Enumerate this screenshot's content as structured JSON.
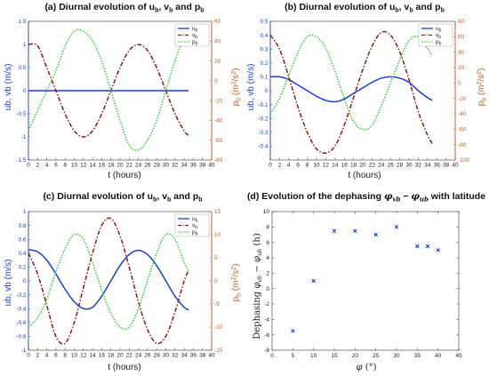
{
  "chart_data": [
    {
      "type": "line",
      "title": "(a) Diurnal evolution of u",
      "title_parts": [
        "(a) Diurnal evolution of u",
        "b",
        ", v",
        "b",
        " and p",
        "b"
      ],
      "xlabel": "t (hours)",
      "ylabel_left": "ub, vb (m/s)",
      "ylabel_right_parts": [
        "p",
        "b",
        " (m",
        "2",
        "/s",
        "2",
        ")"
      ],
      "xlim": [
        0,
        40
      ],
      "xticks": [
        0,
        2,
        4,
        6,
        8,
        10,
        12,
        14,
        16,
        18,
        20,
        22,
        24,
        26,
        28,
        30,
        32,
        34,
        36,
        38,
        40
      ],
      "ylim_left": [
        -1.5,
        1.5
      ],
      "yticks_left": [
        -1.5,
        -1,
        -0.5,
        0,
        0.5,
        1,
        1.5
      ],
      "ylim_right": [
        -80,
        60
      ],
      "yticks_right": [
        -80,
        -60,
        -40,
        -20,
        0,
        20,
        40,
        60
      ],
      "legend": {
        "position": "top-right",
        "entries": [
          {
            "base": "u",
            "sub": "b"
          },
          {
            "base": "v",
            "sub": "b"
          },
          {
            "base": "p",
            "sub": "b"
          }
        ]
      },
      "series": [
        {
          "name": "ub",
          "axis": "left",
          "color": "#1a3fd6",
          "style": "solid",
          "x": [
            0,
            2,
            4,
            6,
            8,
            10,
            12,
            14,
            16,
            18,
            20,
            22,
            24,
            26,
            28,
            30,
            32,
            34,
            35
          ],
          "y": [
            0,
            0,
            0,
            0,
            0,
            0,
            0,
            0,
            0,
            0,
            0,
            0,
            0,
            0,
            0,
            0,
            0,
            0,
            0
          ]
        },
        {
          "name": "vb",
          "axis": "left",
          "color": "#8b1a1a",
          "style": "dashdot",
          "x": [
            0,
            2,
            4,
            6,
            8,
            10,
            12,
            14,
            16,
            18,
            20,
            22,
            24,
            26,
            28,
            30,
            32,
            34,
            35
          ],
          "y": [
            1.0,
            0.97,
            0.5,
            0.0,
            -0.5,
            -0.87,
            -1.0,
            -0.87,
            -0.5,
            0.0,
            0.5,
            0.87,
            1.0,
            0.87,
            0.5,
            0.0,
            -0.5,
            -0.87,
            -0.97
          ]
        },
        {
          "name": "pb",
          "axis": "right",
          "color": "#2ecc2e",
          "style": "dotted",
          "x": [
            0,
            2,
            4,
            6,
            8,
            10,
            12,
            14,
            16,
            18,
            20,
            22,
            24,
            26,
            28,
            30,
            32,
            34,
            35
          ],
          "y": [
            -50,
            -30,
            -10,
            10,
            35,
            50,
            50,
            40,
            20,
            -10,
            -40,
            -65,
            -70,
            -60,
            -40,
            -10,
            20,
            45,
            55
          ]
        }
      ]
    },
    {
      "type": "line",
      "title": "(b) Diurnal evolution of u",
      "title_parts": [
        "(b) Diurnal evolution of u",
        "b",
        ", v",
        "b",
        " and p",
        "b"
      ],
      "xlabel": "t (hours)",
      "ylabel_left": "ub, vb (m/s)",
      "ylabel_right_parts": [
        "p",
        "b",
        " (m",
        "2",
        "/s",
        "2",
        ")"
      ],
      "xlim": [
        0,
        40
      ],
      "xticks": [
        0,
        2,
        4,
        6,
        8,
        10,
        12,
        14,
        16,
        18,
        20,
        22,
        24,
        26,
        28,
        30,
        32,
        34,
        36,
        38,
        40
      ],
      "ylim_left": [
        -0.5,
        0.5
      ],
      "yticks_left": [
        -0.4,
        -0.3,
        -0.2,
        -0.1,
        0,
        0.1,
        0.2,
        0.3,
        0.4,
        0.5
      ],
      "ylim_right": [
        -100,
        80
      ],
      "yticks_right": [
        -100,
        -80,
        -60,
        -40,
        -20,
        0,
        20,
        40,
        60,
        80
      ],
      "legend": {
        "position": "top-right",
        "entries": [
          {
            "base": "u",
            "sub": "b"
          },
          {
            "base": "v",
            "sub": "b"
          },
          {
            "base": "p",
            "sub": "b"
          }
        ]
      },
      "series": [
        {
          "name": "ub",
          "axis": "left",
          "color": "#1a3fd6",
          "style": "solid",
          "x": [
            0,
            2,
            4,
            6,
            8,
            10,
            12,
            14,
            16,
            18,
            20,
            22,
            24,
            26,
            28,
            30,
            32,
            34,
            35
          ],
          "y": [
            0.1,
            0.1,
            0.08,
            0.04,
            0.0,
            -0.04,
            -0.07,
            -0.08,
            -0.06,
            -0.02,
            0.02,
            0.06,
            0.09,
            0.1,
            0.09,
            0.06,
            0.0,
            -0.05,
            -0.07
          ]
        },
        {
          "name": "vb",
          "axis": "left",
          "color": "#8b1a1a",
          "style": "dashdot",
          "x": [
            0,
            2,
            4,
            6,
            8,
            10,
            12,
            14,
            16,
            18,
            20,
            22,
            24,
            26,
            28,
            30,
            32,
            34,
            35
          ],
          "y": [
            0.4,
            0.3,
            0.1,
            -0.12,
            -0.3,
            -0.42,
            -0.45,
            -0.4,
            -0.25,
            -0.05,
            0.15,
            0.32,
            0.42,
            0.4,
            0.28,
            0.08,
            -0.15,
            -0.32,
            -0.38
          ]
        },
        {
          "name": "pb",
          "axis": "right",
          "color": "#2ecc2e",
          "style": "dotted",
          "x": [
            0,
            2,
            4,
            6,
            8,
            10,
            12,
            14,
            16,
            18,
            20,
            22,
            24,
            26,
            28,
            30,
            32,
            34,
            35
          ],
          "y": [
            -40,
            -20,
            10,
            40,
            60,
            60,
            45,
            15,
            -20,
            -50,
            -60,
            -55,
            -30,
            0,
            30,
            55,
            60,
            45,
            35
          ]
        }
      ]
    },
    {
      "type": "line",
      "title": "(c) Diurnal evolution of u",
      "title_parts": [
        "(c) Diurnal evolution of u",
        "b",
        ", v",
        "b",
        " and p",
        "b"
      ],
      "xlabel": "t (hours)",
      "ylabel_left": "ub, vb (m/s)",
      "ylabel_right_parts": [
        "p",
        "b",
        " (m",
        "2",
        "/s",
        "2",
        ")"
      ],
      "xlim": [
        0,
        40
      ],
      "xticks": [
        0,
        2,
        4,
        6,
        8,
        10,
        12,
        14,
        16,
        18,
        20,
        22,
        24,
        26,
        28,
        30,
        32,
        34,
        36,
        38,
        40
      ],
      "ylim_left": [
        -1,
        1
      ],
      "yticks_left": [
        -1,
        -0.8,
        -0.6,
        -0.4,
        -0.2,
        0,
        0.2,
        0.4,
        0.6,
        0.8,
        1
      ],
      "ylim_right": [
        -15,
        15
      ],
      "yticks_right": [
        -15,
        -10,
        -5,
        0,
        5,
        10,
        15
      ],
      "legend": {
        "position": "top-right",
        "entries": [
          {
            "base": "u",
            "sub": "b"
          },
          {
            "base": "v",
            "sub": "b"
          },
          {
            "base": "p",
            "sub": "b"
          }
        ]
      },
      "series": [
        {
          "name": "ub",
          "axis": "left",
          "color": "#1a3fd6",
          "style": "solid",
          "x": [
            0,
            2,
            4,
            6,
            8,
            10,
            12,
            14,
            16,
            18,
            20,
            22,
            24,
            26,
            28,
            30,
            32,
            34,
            35
          ],
          "y": [
            0.45,
            0.42,
            0.3,
            0.1,
            -0.12,
            -0.3,
            -0.4,
            -0.38,
            -0.22,
            0.0,
            0.22,
            0.38,
            0.44,
            0.38,
            0.22,
            0.0,
            -0.22,
            -0.38,
            -0.42
          ]
        },
        {
          "name": "vb",
          "axis": "left",
          "color": "#8b1a1a",
          "style": "dashdot",
          "x": [
            0,
            2,
            4,
            6,
            8,
            10,
            12,
            14,
            16,
            18,
            20,
            22,
            24,
            26,
            28,
            30,
            32,
            34,
            35
          ],
          "y": [
            0.4,
            0.1,
            -0.35,
            -0.8,
            -0.9,
            -0.6,
            -0.1,
            0.4,
            0.8,
            0.9,
            0.65,
            0.2,
            -0.3,
            -0.7,
            -0.9,
            -0.8,
            -0.45,
            0.0,
            0.15
          ]
        },
        {
          "name": "pb",
          "axis": "right",
          "color": "#2ecc2e",
          "style": "dotted",
          "x": [
            0,
            2,
            4,
            6,
            8,
            10,
            12,
            14,
            16,
            18,
            20,
            22,
            24,
            26,
            28,
            30,
            32,
            34,
            35
          ],
          "y": [
            -10,
            -8,
            -4,
            2,
            7,
            10,
            9,
            4,
            -2,
            -7,
            -10,
            -10,
            -6,
            0,
            6,
            10,
            9,
            4,
            2
          ]
        }
      ]
    },
    {
      "type": "scatter",
      "title": "(d) Evolution of the dephasing φ",
      "title_parts": [
        "(d) Evolution of the dephasing ",
        "φ",
        "vb",
        " − ",
        "φ",
        "ub",
        " with latitude"
      ],
      "xlabel_parts": [
        "φ",
        " (°)"
      ],
      "ylabel_parts": [
        "Dephasing ",
        "φ",
        "vb",
        " − ",
        "φ",
        "ub",
        " (h)"
      ],
      "xlim": [
        0,
        45
      ],
      "xticks": [
        0,
        5,
        10,
        15,
        20,
        25,
        30,
        35,
        40,
        45
      ],
      "ylim": [
        -8,
        10
      ],
      "yticks": [
        -8,
        -6,
        -4,
        -2,
        0,
        2,
        4,
        6,
        8,
        10
      ],
      "grid": false,
      "marker_color": "#1a3fd6",
      "x": [
        5,
        10,
        15,
        20,
        25,
        30,
        35,
        37.5,
        40
      ],
      "y": [
        -5.5,
        1.0,
        7.5,
        7.5,
        7.0,
        8.0,
        5.5,
        5.5,
        5.0
      ]
    }
  ]
}
